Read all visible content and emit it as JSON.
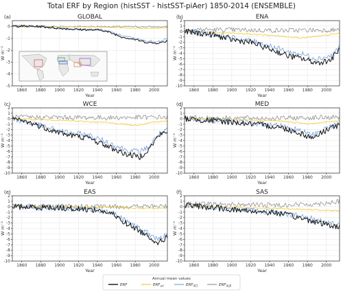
{
  "figure": {
    "title": "Total ERF by Region (histSST - histSST-piAer) 1850-2014 (ENSEMBLE)",
    "legend_title": "Annual mean values"
  },
  "chart_data": {
    "type": "line",
    "x_range": [
      1850,
      2014
    ],
    "x_ticks": [
      1860,
      1880,
      1900,
      1920,
      1940,
      1960,
      1980,
      2000
    ],
    "xlabel": "Year",
    "ylabel": "W m⁻²",
    "series_meta": [
      {
        "key": "erf",
        "base": "ERF",
        "sub": "",
        "color": "#111111"
      },
      {
        "key": "ari",
        "base": "ERF",
        "sub": "ari",
        "color": "#f0c419"
      },
      {
        "key": "aci",
        "base": "ERF",
        "sub": "ACI",
        "color": "#6f9bd8"
      },
      {
        "key": "alb",
        "base": "ERF",
        "sub": "ALB",
        "color": "#8c8c8c"
      }
    ],
    "panels": [
      {
        "label": "(a)",
        "title": "GLOBAL",
        "ylim": [
          -5,
          0.5
        ],
        "yticks": [
          0,
          -1,
          -2,
          -3,
          -4,
          -5
        ],
        "inset_map": true,
        "anchors": {
          "erf": [
            [
              1850,
              0.05
            ],
            [
              1880,
              0.0
            ],
            [
              1900,
              -0.15
            ],
            [
              1920,
              -0.25
            ],
            [
              1945,
              -0.3
            ],
            [
              1955,
              -0.55
            ],
            [
              1965,
              -0.85
            ],
            [
              1980,
              -1.1
            ],
            [
              1990,
              -1.3
            ],
            [
              2000,
              -1.4
            ],
            [
              2008,
              -1.35
            ],
            [
              2014,
              -1.2
            ]
          ],
          "ari": [
            [
              1850,
              0.0
            ],
            [
              1900,
              0.0
            ],
            [
              1950,
              -0.05
            ],
            [
              1980,
              -0.15
            ],
            [
              2000,
              -0.15
            ],
            [
              2014,
              -0.1
            ]
          ],
          "aci": [
            [
              1850,
              0.05
            ],
            [
              1880,
              0.0
            ],
            [
              1900,
              -0.15
            ],
            [
              1920,
              -0.22
            ],
            [
              1945,
              -0.28
            ],
            [
              1955,
              -0.5
            ],
            [
              1965,
              -0.75
            ],
            [
              1980,
              -1.0
            ],
            [
              1990,
              -1.2
            ],
            [
              2000,
              -1.25
            ],
            [
              2008,
              -1.2
            ],
            [
              2014,
              -1.05
            ]
          ],
          "alb": [
            [
              1850,
              0.02
            ],
            [
              1950,
              0.0
            ],
            [
              2014,
              -0.03
            ]
          ]
        }
      },
      {
        "label": "(b)",
        "title": "ENA",
        "ylim": [
          -10,
          2
        ],
        "yticks": [
          2,
          1,
          0,
          -1,
          -2,
          -3,
          -4,
          -5,
          -6,
          -7,
          -8,
          -9,
          -10
        ],
        "anchors": {
          "erf": [
            [
              1850,
              0.0
            ],
            [
              1880,
              -0.6
            ],
            [
              1900,
              -1.5
            ],
            [
              1920,
              -2.0
            ],
            [
              1940,
              -3.2
            ],
            [
              1960,
              -4.5
            ],
            [
              1975,
              -5.0
            ],
            [
              1990,
              -5.8
            ],
            [
              2005,
              -5.2
            ],
            [
              2014,
              -3.2
            ]
          ],
          "ari": [
            [
              1850,
              -0.1
            ],
            [
              1900,
              -0.3
            ],
            [
              1950,
              -0.8
            ],
            [
              1975,
              -1.2
            ],
            [
              2000,
              -0.7
            ],
            [
              2014,
              -0.3
            ]
          ],
          "aci": [
            [
              1850,
              0.0
            ],
            [
              1880,
              -0.5
            ],
            [
              1900,
              -1.2
            ],
            [
              1920,
              -1.7
            ],
            [
              1940,
              -2.6
            ],
            [
              1960,
              -3.8
            ],
            [
              1975,
              -4.2
            ],
            [
              1990,
              -5.0
            ],
            [
              2005,
              -4.5
            ],
            [
              2014,
              -2.8
            ]
          ],
          "alb": [
            [
              1850,
              0.4
            ],
            [
              1900,
              0.3
            ],
            [
              1950,
              0.2
            ],
            [
              2014,
              0.3
            ]
          ]
        }
      },
      {
        "label": "(c)",
        "title": "WCE",
        "ylim": [
          -10,
          2
        ],
        "yticks": [
          2,
          1,
          0,
          -1,
          -2,
          -3,
          -4,
          -5,
          -6,
          -7,
          -8,
          -9,
          -10
        ],
        "anchors": {
          "erf": [
            [
              1850,
              0.0
            ],
            [
              1870,
              -0.8
            ],
            [
              1890,
              -2.0
            ],
            [
              1910,
              -3.0
            ],
            [
              1930,
              -3.5
            ],
            [
              1950,
              -5.0
            ],
            [
              1970,
              -6.5
            ],
            [
              1985,
              -7.0
            ],
            [
              1995,
              -5.5
            ],
            [
              2005,
              -3.0
            ],
            [
              2014,
              -2.5
            ]
          ],
          "ari": [
            [
              1850,
              0.0
            ],
            [
              1900,
              -0.3
            ],
            [
              1950,
              -0.7
            ],
            [
              1980,
              -1.2
            ],
            [
              2000,
              -0.6
            ],
            [
              2014,
              -0.4
            ]
          ],
          "aci": [
            [
              1850,
              0.0
            ],
            [
              1870,
              -0.8
            ],
            [
              1890,
              -1.8
            ],
            [
              1910,
              -2.6
            ],
            [
              1930,
              -3.0
            ],
            [
              1950,
              -4.3
            ],
            [
              1970,
              -5.7
            ],
            [
              1985,
              -6.1
            ],
            [
              1995,
              -5.0
            ],
            [
              2005,
              -2.8
            ],
            [
              2014,
              -2.2
            ]
          ],
          "alb": [
            [
              1850,
              0.3
            ],
            [
              1950,
              0.2
            ],
            [
              2014,
              0.3
            ]
          ]
        }
      },
      {
        "label": "(d)",
        "title": "MED",
        "ylim": [
          -10,
          2
        ],
        "yticks": [
          2,
          1,
          0,
          -1,
          -2,
          -3,
          -4,
          -5,
          -6,
          -7,
          -8,
          -9,
          -10
        ],
        "anchors": {
          "erf": [
            [
              1850,
              0.0
            ],
            [
              1900,
              -0.6
            ],
            [
              1950,
              -1.5
            ],
            [
              1970,
              -2.5
            ],
            [
              1985,
              -3.5
            ],
            [
              1995,
              -2.6
            ],
            [
              2005,
              -1.5
            ],
            [
              2014,
              -1.3
            ]
          ],
          "ari": [
            [
              1850,
              0.0
            ],
            [
              1900,
              -0.2
            ],
            [
              1950,
              -0.4
            ],
            [
              1980,
              -0.9
            ],
            [
              2000,
              -0.6
            ],
            [
              2014,
              -0.4
            ]
          ],
          "aci": [
            [
              1850,
              0.0
            ],
            [
              1900,
              -0.5
            ],
            [
              1950,
              -1.2
            ],
            [
              1970,
              -2.1
            ],
            [
              1985,
              -3.0
            ],
            [
              1995,
              -2.2
            ],
            [
              2005,
              -1.3
            ],
            [
              2014,
              -1.0
            ]
          ],
          "alb": [
            [
              1850,
              0.2
            ],
            [
              1950,
              0.1
            ],
            [
              2014,
              0.3
            ]
          ]
        }
      },
      {
        "label": "(e)",
        "title": "EAS",
        "ylim": [
          -10,
          2
        ],
        "yticks": [
          2,
          1,
          0,
          -1,
          -2,
          -3,
          -4,
          -5,
          -6,
          -7,
          -8,
          -9,
          -10
        ],
        "anchors": {
          "erf": [
            [
              1850,
              0.0
            ],
            [
              1900,
              -0.2
            ],
            [
              1940,
              -0.6
            ],
            [
              1955,
              -1.3
            ],
            [
              1970,
              -3.0
            ],
            [
              1990,
              -5.0
            ],
            [
              2005,
              -6.7
            ],
            [
              2014,
              -5.5
            ]
          ],
          "ari": [
            [
              1850,
              0.0
            ],
            [
              1950,
              -0.1
            ],
            [
              1990,
              -0.3
            ],
            [
              2014,
              -0.3
            ]
          ],
          "aci": [
            [
              1850,
              0.0
            ],
            [
              1900,
              -0.2
            ],
            [
              1940,
              -0.5
            ],
            [
              1955,
              -1.1
            ],
            [
              1970,
              -2.7
            ],
            [
              1990,
              -4.6
            ],
            [
              2005,
              -6.1
            ],
            [
              2014,
              -5.0
            ]
          ],
          "alb": [
            [
              1850,
              0.1
            ],
            [
              1950,
              0.0
            ],
            [
              2014,
              0.1
            ]
          ]
        }
      },
      {
        "label": "(f)",
        "title": "SAS",
        "ylim": [
          -10,
          2
        ],
        "yticks": [
          2,
          1,
          0,
          -1,
          -2,
          -3,
          -4,
          -5,
          -6,
          -7,
          -8,
          -9,
          -10
        ],
        "anchors": {
          "erf": [
            [
              1850,
              0.3
            ],
            [
              1900,
              -0.5
            ],
            [
              1950,
              -1.2
            ],
            [
              1970,
              -2.0
            ],
            [
              1990,
              -2.8
            ],
            [
              2005,
              -3.5
            ],
            [
              2014,
              -3.8
            ]
          ],
          "ari": [
            [
              1850,
              0.0
            ],
            [
              1950,
              -0.3
            ],
            [
              1990,
              -0.6
            ],
            [
              2014,
              -0.8
            ]
          ],
          "aci": [
            [
              1850,
              0.2
            ],
            [
              1900,
              -0.4
            ],
            [
              1950,
              -1.0
            ],
            [
              1970,
              -1.7
            ],
            [
              1990,
              -2.4
            ],
            [
              2005,
              -3.0
            ],
            [
              2014,
              -3.4
            ]
          ],
          "alb": [
            [
              1850,
              0.5
            ],
            [
              1950,
              0.3
            ],
            [
              1990,
              0.5
            ],
            [
              2014,
              1.0
            ]
          ]
        }
      }
    ]
  }
}
